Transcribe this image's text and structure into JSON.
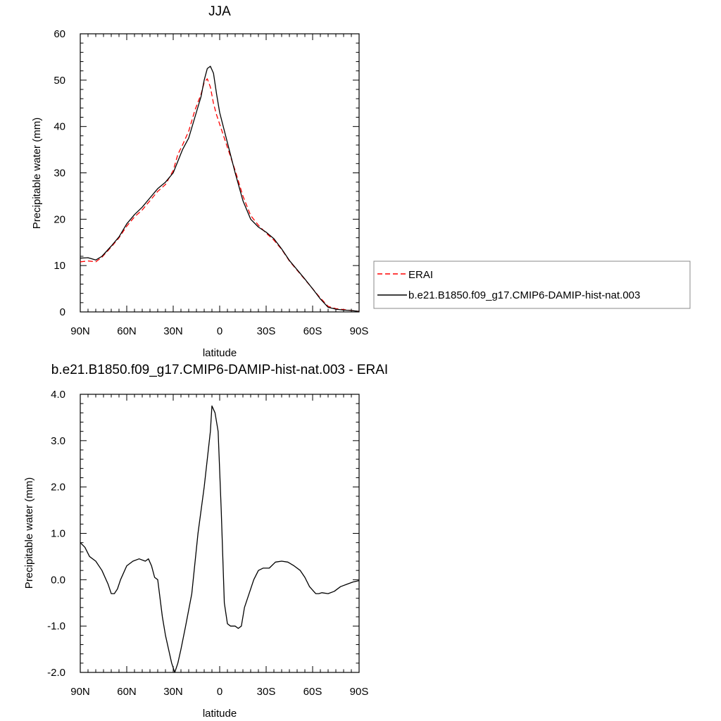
{
  "chart_data": [
    {
      "type": "line",
      "title": "JJA",
      "xlabel": "latitude",
      "ylabel": "Precipitable water (mm)",
      "xlim": [
        90,
        -90
      ],
      "ylim": [
        0,
        60
      ],
      "xticks": [
        90,
        60,
        30,
        0,
        -30,
        -60,
        -90
      ],
      "xtick_labels": [
        "90N",
        "60N",
        "30N",
        "0",
        "30S",
        "60S",
        "90S"
      ],
      "yticks": [
        0,
        10,
        20,
        30,
        40,
        50,
        60
      ],
      "ytick_labels": [
        "0",
        "10",
        "20",
        "30",
        "40",
        "50",
        "60"
      ],
      "legend_position": "right",
      "series": [
        {
          "name": "ERAI",
          "color": "#ff0000",
          "style": "dashed",
          "x": [
            90,
            85,
            80,
            76,
            70,
            65,
            60,
            55,
            50,
            45,
            40,
            35,
            30,
            27,
            24,
            20,
            16,
            12,
            10,
            8,
            6,
            4,
            2,
            0,
            -5,
            -10,
            -15,
            -20,
            -25,
            -30,
            -35,
            -40,
            -45,
            -50,
            -55,
            -60,
            -65,
            -70,
            -75,
            -80,
            -85,
            -90
          ],
          "y": [
            10.8,
            11.0,
            10.8,
            11.8,
            14.0,
            16.0,
            18.5,
            20.5,
            22.0,
            24.0,
            26.0,
            27.5,
            30.5,
            34.0,
            36.0,
            39.0,
            43.5,
            47.0,
            49.5,
            50.3,
            48.5,
            45.0,
            42.5,
            40.5,
            35.5,
            30.5,
            25.0,
            20.8,
            18.7,
            17.0,
            15.5,
            13.5,
            11.0,
            9.0,
            7.0,
            5.0,
            3.0,
            1.2,
            0.7,
            0.5,
            0.3,
            0.1
          ]
        },
        {
          "name": "b.e21.B1850.f09_g17.CMIP6-DAMIP-hist-nat.003",
          "color": "#000000",
          "style": "solid",
          "x": [
            90,
            85,
            80,
            76,
            70,
            65,
            60,
            55,
            50,
            45,
            40,
            35,
            30,
            27,
            24,
            20,
            16,
            12,
            10,
            8,
            6,
            4,
            2,
            0,
            -5,
            -10,
            -15,
            -20,
            -25,
            -30,
            -35,
            -40,
            -45,
            -50,
            -55,
            -60,
            -65,
            -70,
            -75,
            -80,
            -85,
            -90
          ],
          "y": [
            11.6,
            11.7,
            11.2,
            12.0,
            14.2,
            16.2,
            19.0,
            21.0,
            22.6,
            24.6,
            26.6,
            28.0,
            30.0,
            32.5,
            35.0,
            37.5,
            42.0,
            46.5,
            50.0,
            52.5,
            53.0,
            51.5,
            47.0,
            43.0,
            36.5,
            30.0,
            24.0,
            20.0,
            18.3,
            17.2,
            15.8,
            13.6,
            11.1,
            9.1,
            7.1,
            5.0,
            2.8,
            1.0,
            0.6,
            0.4,
            0.3,
            0.1
          ]
        }
      ]
    },
    {
      "type": "line",
      "title": "b.e21.B1850.f09_g17.CMIP6-DAMIP-hist-nat.003 - ERAI",
      "xlabel": "latitude",
      "ylabel": "Precipitable water (mm)",
      "xlim": [
        90,
        -90
      ],
      "ylim": [
        -2.0,
        4.0
      ],
      "xticks": [
        90,
        60,
        30,
        0,
        -30,
        -60,
        -90
      ],
      "xtick_labels": [
        "90N",
        "60N",
        "30N",
        "0",
        "30S",
        "60S",
        "90S"
      ],
      "yticks": [
        -2.0,
        -1.0,
        0.0,
        1.0,
        2.0,
        3.0,
        4.0
      ],
      "ytick_labels": [
        "-2.0",
        "-1.0",
        "0.0",
        "1.0",
        "2.0",
        "3.0",
        "4.0"
      ],
      "series": [
        {
          "color": "#000000",
          "style": "solid",
          "x": [
            90,
            87,
            84,
            80,
            76,
            72,
            70,
            68,
            66,
            64,
            60,
            56,
            52,
            48,
            46,
            44,
            42,
            40,
            37,
            35,
            33,
            31,
            29,
            28,
            27,
            25,
            22,
            18,
            14,
            10,
            7,
            6,
            5,
            3,
            1,
            -1,
            -3,
            -5,
            -7,
            -10,
            -12,
            -14,
            -16,
            -19,
            -22,
            -25,
            -28,
            -32,
            -36,
            -40,
            -44,
            -48,
            -52,
            -55,
            -58,
            -62,
            -64,
            -66,
            -70,
            -74,
            -78,
            -82,
            -86,
            -90
          ],
          "y": [
            0.8,
            0.7,
            0.5,
            0.4,
            0.2,
            -0.1,
            -0.3,
            -0.3,
            -0.2,
            0.0,
            0.3,
            0.4,
            0.45,
            0.4,
            0.45,
            0.3,
            0.05,
            0.0,
            -0.8,
            -1.2,
            -1.5,
            -1.8,
            -2.0,
            -1.9,
            -1.8,
            -1.5,
            -1.0,
            -0.3,
            1.0,
            2.0,
            2.9,
            3.2,
            3.75,
            3.6,
            3.2,
            1.5,
            -0.5,
            -0.95,
            -1.0,
            -1.0,
            -1.05,
            -1.0,
            -0.6,
            -0.3,
            0.0,
            0.2,
            0.25,
            0.25,
            0.38,
            0.4,
            0.38,
            0.3,
            0.2,
            0.05,
            -0.15,
            -0.3,
            -0.3,
            -0.28,
            -0.3,
            -0.25,
            -0.15,
            -0.1,
            -0.05,
            -0.02
          ]
        }
      ]
    }
  ]
}
